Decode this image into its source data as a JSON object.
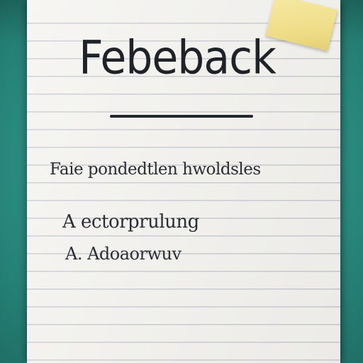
{
  "note": {
    "title": "Febeback",
    "lines": [
      "Faie pondedtlen hwoldsles",
      "A ectorprulung",
      "A. Adoaorwuv"
    ]
  },
  "colors": {
    "background": "#2f9a8b",
    "paper": "#f5f4f1",
    "ruled_line": "#c9cdd2",
    "sticky_note": "#eedc85",
    "ink": "#1f2328"
  }
}
